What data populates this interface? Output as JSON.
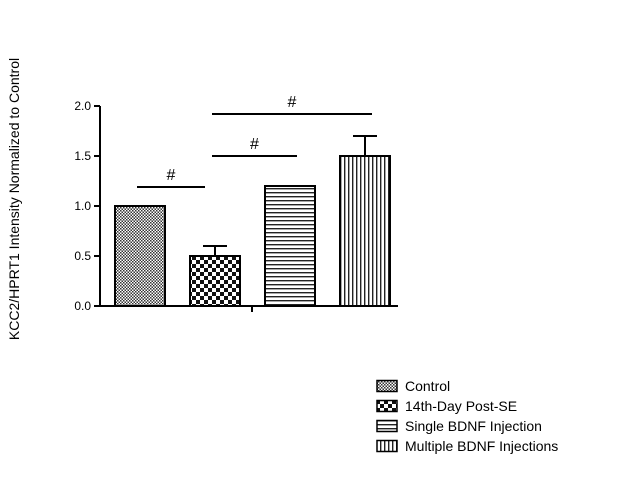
{
  "chart_data": {
    "type": "bar",
    "title": "",
    "xlabel": "",
    "ylabel": "KCC2/HPRT1 Intensity Normalized to Control",
    "ylim": [
      0,
      2.0
    ],
    "yticks": [
      0.0,
      0.5,
      1.0,
      1.5,
      2.0
    ],
    "ytick_labels": [
      "0.0",
      "0.5",
      "1.0",
      "1.5",
      "2.0"
    ],
    "categories": [
      "Control",
      "14th-Day Post-SE",
      "Single BDNF Injection",
      "Multiple BDNF Injections"
    ],
    "values": [
      1.0,
      0.5,
      1.2,
      1.5
    ],
    "error_upper": [
      null,
      0.6,
      null,
      1.7
    ],
    "patterns": [
      "fine-crosshatch",
      "checkerboard",
      "horizontal-lines",
      "vertical-lines"
    ],
    "grid": false,
    "legend": {
      "position": "bottom-right",
      "entries": [
        "Control",
        "14th-Day Post-SE",
        "Single BDNF Injection",
        "Multiple BDNF Injections"
      ]
    },
    "significance": [
      {
        "label": "#",
        "from": "Control",
        "to": "14th-Day Post-SE"
      },
      {
        "label": "#",
        "from": "14th-Day Post-SE",
        "to": "Single BDNF Injection"
      },
      {
        "label": "#",
        "from": "14th-Day Post-SE",
        "to": "Multiple BDNF Injections"
      }
    ]
  }
}
